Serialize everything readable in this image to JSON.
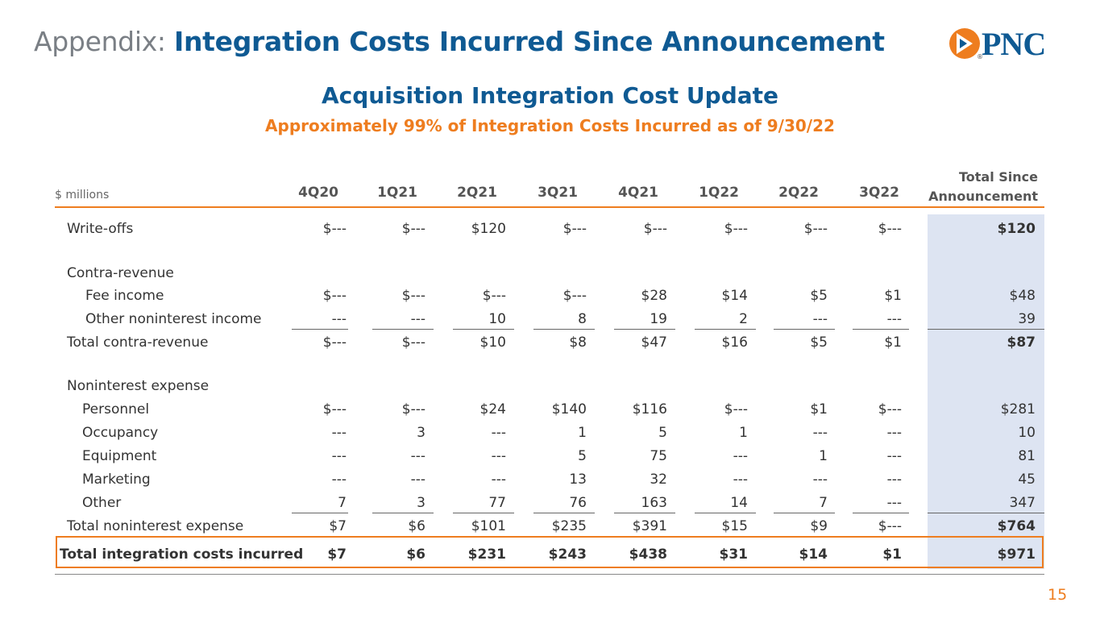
{
  "header": {
    "title_prefix": "Appendix:",
    "title_main": "Integration Costs Incurred Since Announcement",
    "logo_text": "PNC",
    "logo_reg": "®"
  },
  "subtitle": "Acquisition Integration Cost Update",
  "subsubtitle": "Approximately 99% of Integration Costs Incurred as of 9/30/22",
  "table": {
    "units": "$ millions",
    "columns": [
      "4Q20",
      "1Q21",
      "2Q21",
      "3Q21",
      "4Q21",
      "1Q22",
      "2Q22",
      "3Q22"
    ],
    "total_header_line1": "Total Since",
    "total_header_line2": "Announcement",
    "rows": [
      {
        "label": "Write-offs",
        "values": [
          "$---",
          "$---",
          "$120",
          "$---",
          "$---",
          "$---",
          "$---",
          "$---"
        ],
        "total": "$120"
      },
      {
        "label": "Contra-revenue",
        "values": [
          "",
          "",
          "",
          "",
          "",
          "",
          "",
          ""
        ],
        "total": ""
      },
      {
        "label": "Fee income",
        "values": [
          "$---",
          "$---",
          "$---",
          "$---",
          "$28",
          "$14",
          "$5",
          "$1"
        ],
        "total": "$48"
      },
      {
        "label": "Other noninterest income",
        "values": [
          "---",
          "---",
          "10",
          "8",
          "19",
          "2",
          "---",
          "---"
        ],
        "total": "39"
      },
      {
        "label": "Total contra-revenue",
        "values": [
          "$---",
          "$---",
          "$10",
          "$8",
          "$47",
          "$16",
          "$5",
          "$1"
        ],
        "total": "$87"
      },
      {
        "label": "Noninterest expense",
        "values": [
          "",
          "",
          "",
          "",
          "",
          "",
          "",
          ""
        ],
        "total": ""
      },
      {
        "label": "Personnel",
        "values": [
          "$---",
          "$---",
          "$24",
          "$140",
          "$116",
          "$---",
          "$1",
          "$---"
        ],
        "total": "$281"
      },
      {
        "label": "Occupancy",
        "values": [
          "---",
          "3",
          "---",
          "1",
          "5",
          "1",
          "---",
          "---"
        ],
        "total": "10"
      },
      {
        "label": "Equipment",
        "values": [
          "---",
          "---",
          "---",
          "5",
          "75",
          "---",
          "1",
          "---"
        ],
        "total": "81"
      },
      {
        "label": "Marketing",
        "values": [
          "---",
          "---",
          "---",
          "13",
          "32",
          "---",
          "---",
          "---"
        ],
        "total": "45"
      },
      {
        "label": "Other",
        "values": [
          "7",
          "3",
          "77",
          "76",
          "163",
          "14",
          "7",
          "---"
        ],
        "total": "347"
      },
      {
        "label": "Total noninterest expense",
        "values": [
          "$7",
          "$6",
          "$101",
          "$235",
          "$391",
          "$15",
          "$9",
          "$---"
        ],
        "total": "$764"
      },
      {
        "label": "Total integration costs incurred",
        "values": [
          "$7",
          "$6",
          "$231",
          "$243",
          "$438",
          "$31",
          "$14",
          "$1"
        ],
        "total": "$971"
      }
    ]
  },
  "page_number": "15",
  "colors": {
    "navy": "#0f5a93",
    "orange": "#ee7d1f",
    "band": "#dde4f2",
    "gray": "#7a7f85"
  }
}
